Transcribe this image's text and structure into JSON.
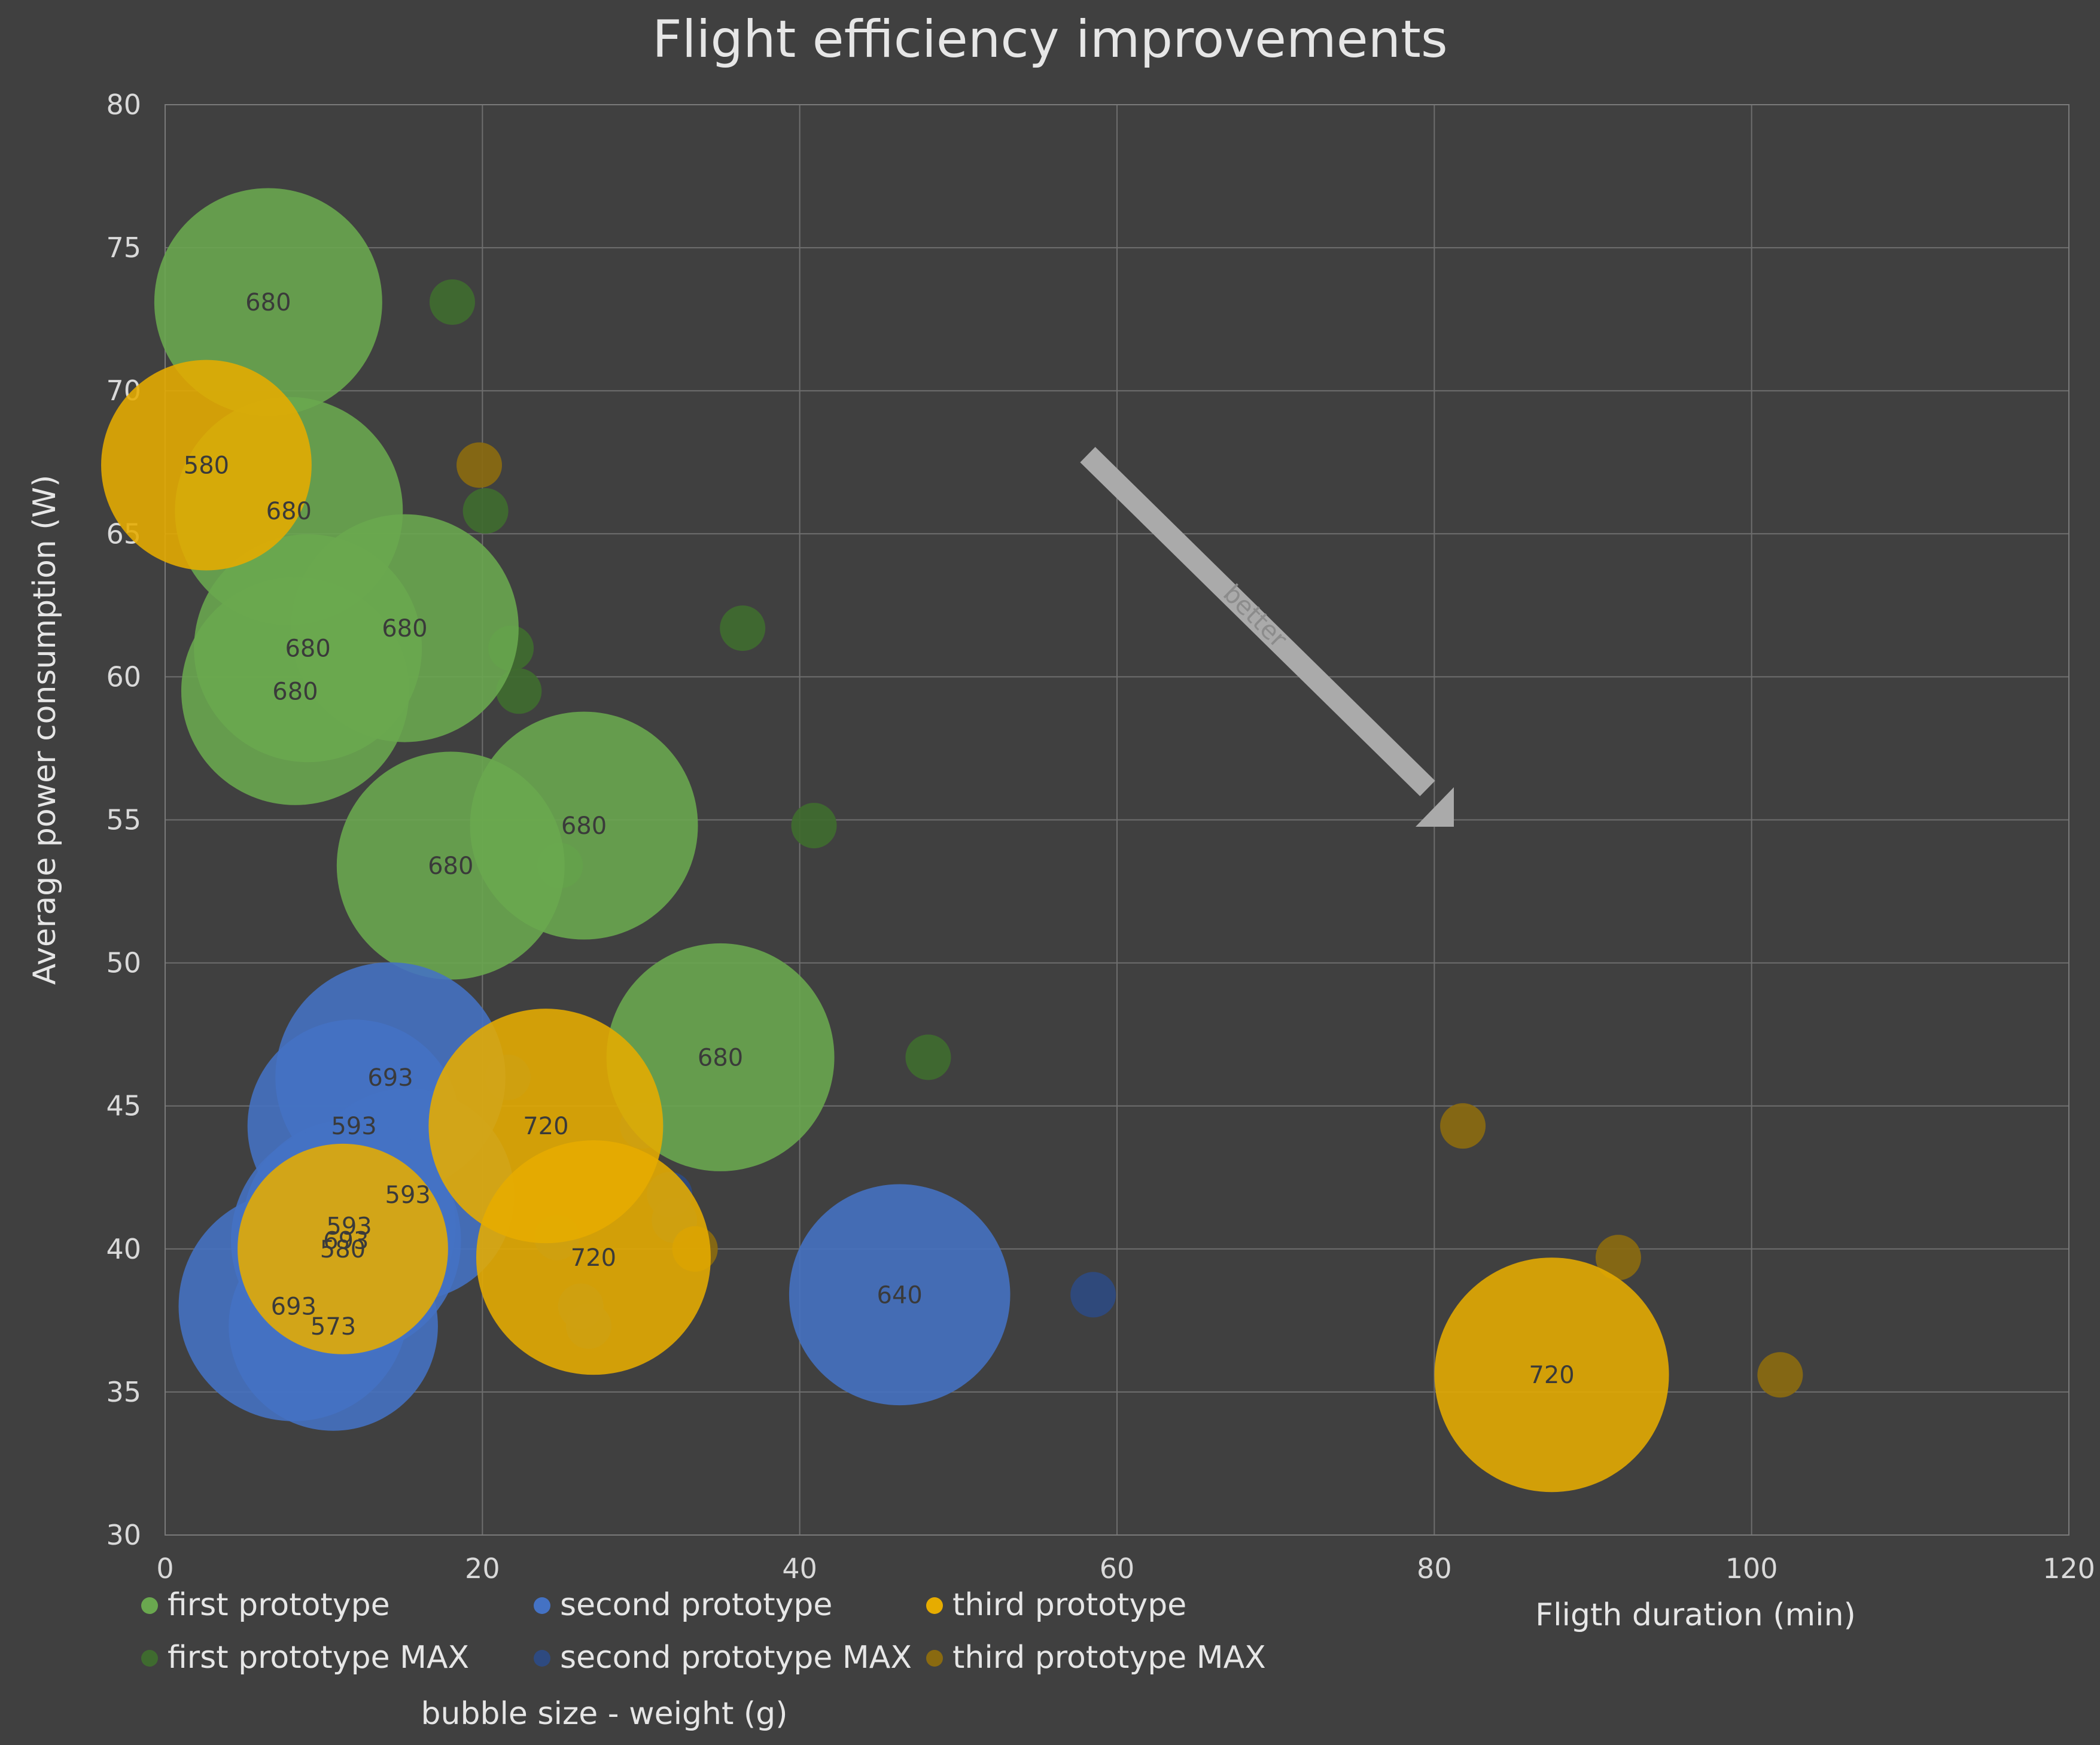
{
  "chart_data": {
    "type": "bubble",
    "title": "Flight efficiency improvements",
    "xlabel": "Fligth duration (min)",
    "ylabel": "Average power consumption (W)",
    "size_note": "bubble size - weight (g)",
    "xlim": [
      0,
      120
    ],
    "ylim": [
      30,
      80
    ],
    "x_ticks": [
      0,
      20,
      40,
      60,
      80,
      100,
      120
    ],
    "y_ticks": [
      30,
      35,
      40,
      45,
      50,
      55,
      60,
      65,
      70,
      75,
      80
    ],
    "grid": true,
    "legend_position": "bottom",
    "annotation": "better",
    "series": [
      {
        "name": "first prototype",
        "color": "#6aa84f",
        "labeled": true,
        "points": [
          {
            "x": 6.5,
            "y": 73.1,
            "size": 680
          },
          {
            "x": 7.8,
            "y": 65.8,
            "size": 680
          },
          {
            "x": 9.0,
            "y": 61.0,
            "size": 680
          },
          {
            "x": 8.2,
            "y": 59.5,
            "size": 680
          },
          {
            "x": 15.1,
            "y": 61.7,
            "size": 680
          },
          {
            "x": 26.4,
            "y": 54.8,
            "size": 680
          },
          {
            "x": 18.0,
            "y": 53.4,
            "size": 680
          },
          {
            "x": 35.0,
            "y": 46.7,
            "size": 680
          }
        ]
      },
      {
        "name": "second prototype",
        "color": "#4472c4",
        "labeled": true,
        "points": [
          {
            "x": 14.2,
            "y": 46.0,
            "size": 693
          },
          {
            "x": 11.9,
            "y": 44.3,
            "size": 593
          },
          {
            "x": 15.3,
            "y": 41.9,
            "size": 593
          },
          {
            "x": 11.6,
            "y": 40.8,
            "size": 593
          },
          {
            "x": 11.4,
            "y": 40.3,
            "size": 693
          },
          {
            "x": 8.1,
            "y": 38.0,
            "size": 693
          },
          {
            "x": 10.6,
            "y": 37.3,
            "size": 573
          },
          {
            "x": 46.3,
            "y": 38.4,
            "size": 640
          }
        ]
      },
      {
        "name": "third prototype",
        "color": "#e6ac00",
        "labeled": true,
        "points": [
          {
            "x": 2.6,
            "y": 67.4,
            "size": 580
          },
          {
            "x": 11.2,
            "y": 40.0,
            "size": 580
          },
          {
            "x": 24.0,
            "y": 44.3,
            "size": 720
          },
          {
            "x": 27.0,
            "y": 39.7,
            "size": 720
          },
          {
            "x": 87.4,
            "y": 35.6,
            "size": 720
          }
        ]
      },
      {
        "name": "first prototype MAX",
        "color": "#3f6b2f",
        "labeled": false,
        "points": [
          {
            "x": 18.1,
            "y": 73.1
          },
          {
            "x": 20.2,
            "y": 65.8
          },
          {
            "x": 21.8,
            "y": 61.0
          },
          {
            "x": 22.3,
            "y": 59.5
          },
          {
            "x": 36.4,
            "y": 61.7
          },
          {
            "x": 40.9,
            "y": 54.8
          },
          {
            "x": 24.9,
            "y": 53.4
          },
          {
            "x": 48.1,
            "y": 46.7
          }
        ]
      },
      {
        "name": "second prototype MAX",
        "color": "#2e4a80",
        "labeled": false,
        "points": [
          {
            "x": 21.6,
            "y": 46.0
          },
          {
            "x": 30.1,
            "y": 44.3
          },
          {
            "x": 31.8,
            "y": 41.9
          },
          {
            "x": 32.1,
            "y": 41.0
          },
          {
            "x": 24.7,
            "y": 40.4
          },
          {
            "x": 26.2,
            "y": 38.0
          },
          {
            "x": 26.7,
            "y": 37.3
          },
          {
            "x": 58.5,
            "y": 38.4
          }
        ]
      },
      {
        "name": "third prototype MAX",
        "color": "#8a6a10",
        "labeled": false,
        "points": [
          {
            "x": 19.8,
            "y": 67.4
          },
          {
            "x": 33.4,
            "y": 40.0
          },
          {
            "x": 81.8,
            "y": 44.3
          },
          {
            "x": 91.6,
            "y": 39.7
          },
          {
            "x": 101.8,
            "y": 35.6
          }
        ]
      }
    ]
  }
}
